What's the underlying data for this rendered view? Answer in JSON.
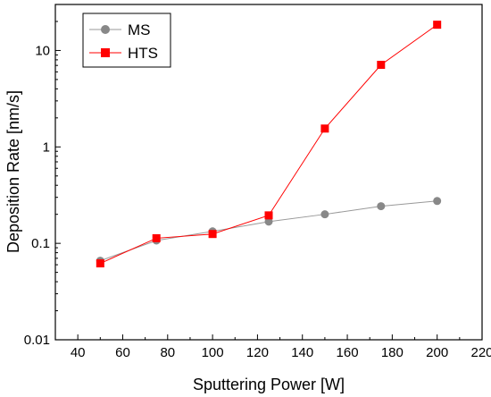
{
  "chart_data": {
    "type": "line",
    "title": "",
    "xlabel": "Sputtering Power [W]",
    "ylabel": "Deposition Rate [nm/s]",
    "xlim": [
      30,
      220
    ],
    "ylim": [
      0.01,
      30
    ],
    "yscale": "log",
    "grid": false,
    "legend_position": "top-left",
    "x_ticks": [
      40,
      60,
      80,
      100,
      120,
      140,
      160,
      180,
      200,
      220
    ],
    "x_tick_labels": [
      "40",
      "60",
      "80",
      "100",
      "120",
      "140",
      "160",
      "180",
      "200",
      "220"
    ],
    "y_ticks": [
      0.01,
      0.1,
      1,
      10
    ],
    "y_tick_labels": [
      "0.01",
      "0.1",
      "1",
      "10"
    ],
    "series": [
      {
        "name": "MS",
        "color": "#999999",
        "marker": "circle",
        "x": [
          50,
          75,
          100,
          125,
          150,
          175,
          200
        ],
        "y": [
          0.066,
          0.107,
          0.133,
          0.168,
          0.2,
          0.243,
          0.275
        ]
      },
      {
        "name": "HTS",
        "color": "#ff0000",
        "marker": "square",
        "x": [
          50,
          75,
          100,
          125,
          150,
          175,
          200
        ],
        "y": [
          0.062,
          0.113,
          0.125,
          0.195,
          1.55,
          7.1,
          18.5
        ]
      }
    ]
  }
}
